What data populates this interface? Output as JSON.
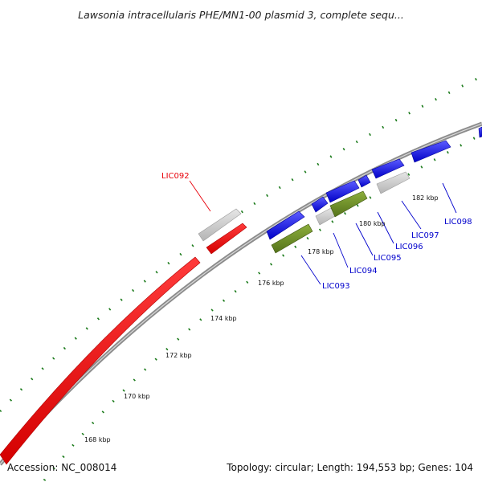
{
  "title": "Lawsonia intracellularis PHE/MN1-00 plasmid 3, complete sequ...",
  "accession": "Accession: NC_008014",
  "summary": "Topology: circular; Length: 194,553 bp; Genes: 104",
  "ticks": [
    {
      "label": "168 kbp"
    },
    {
      "label": "170 kbp"
    },
    {
      "label": "172 kbp"
    },
    {
      "label": "174 kbp"
    },
    {
      "label": "176 kbp"
    },
    {
      "label": "178 kbp"
    },
    {
      "label": "180 kbp"
    },
    {
      "label": "182 kbp"
    }
  ],
  "genes": [
    {
      "name": "LIC092",
      "color": "#e8000a"
    },
    {
      "name": "LIC093",
      "color": "#0000cc"
    },
    {
      "name": "LIC094",
      "color": "#0000cc"
    },
    {
      "name": "LIC095",
      "color": "#0000cc"
    },
    {
      "name": "LIC096",
      "color": "#0000cc"
    },
    {
      "name": "LIC097",
      "color": "#0000cc"
    },
    {
      "name": "LIC098",
      "color": "#0000cc"
    }
  ],
  "colors": {
    "forward_cds": "#1414e6",
    "reverse_cds": "#e8000a",
    "gene": "#c8c8c8",
    "rna": "#6b8e23",
    "backbone": "#8c8c8c",
    "tick": "#1a7a1a"
  }
}
